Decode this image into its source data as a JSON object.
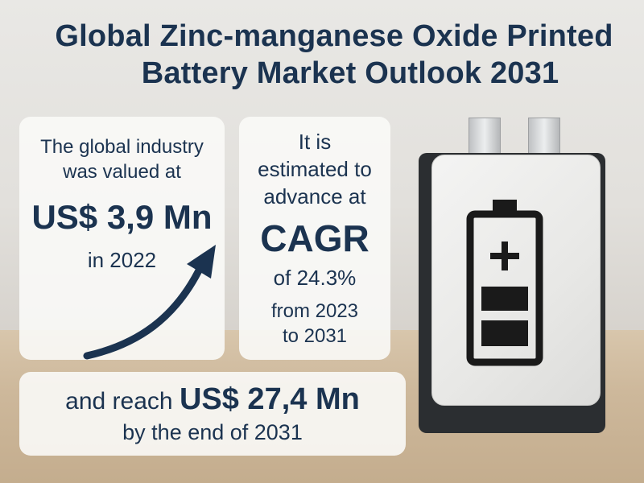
{
  "title": {
    "line1": "Global Zinc-manganese Oxide Printed",
    "line2": "Battery Market Outlook 2031"
  },
  "left_card": {
    "intro_line1": "The global industry",
    "intro_line2": "was valued at",
    "value": "US$ 3,9 Mn",
    "year": "in 2022"
  },
  "middle_card": {
    "intro_line1": "It is",
    "intro_line2": "estimated to",
    "intro_line3": "advance at",
    "cagr_label": "CAGR",
    "rate": "of 24.3%",
    "range_line1": "from 2023",
    "range_line2": "to 2031"
  },
  "bottom_card": {
    "prefix": "and reach",
    "value": "US$ 27,4 Mn",
    "suffix": "by the end of 2031"
  },
  "icons": {
    "arrow": "growth-arrow-icon",
    "battery": "battery-icon",
    "battery_level": "battery-level-icon"
  },
  "colors": {
    "text": "#1b3350",
    "card": "#faf9f7",
    "arrow": "#1b3350"
  }
}
